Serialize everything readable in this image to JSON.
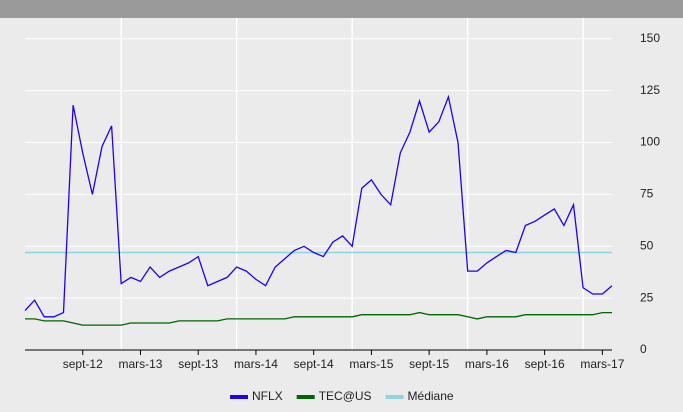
{
  "chart_data": {
    "type": "line",
    "x": [
      "2012-03",
      "2012-04",
      "2012-05",
      "2012-06",
      "2012-07",
      "2012-08",
      "2012-09",
      "2012-10",
      "2012-11",
      "2012-12",
      "2013-01",
      "2013-02",
      "2013-03",
      "2013-04",
      "2013-05",
      "2013-06",
      "2013-07",
      "2013-08",
      "2013-09",
      "2013-10",
      "2013-11",
      "2013-12",
      "2014-01",
      "2014-02",
      "2014-03",
      "2014-04",
      "2014-05",
      "2014-06",
      "2014-07",
      "2014-08",
      "2014-09",
      "2014-10",
      "2014-11",
      "2014-12",
      "2015-01",
      "2015-02",
      "2015-03",
      "2015-04",
      "2015-05",
      "2015-06",
      "2015-07",
      "2015-08",
      "2015-09",
      "2015-10",
      "2015-11",
      "2015-12",
      "2016-01",
      "2016-02",
      "2016-03",
      "2016-04",
      "2016-05",
      "2016-06",
      "2016-07",
      "2016-08",
      "2016-09",
      "2016-10",
      "2016-11",
      "2016-12",
      "2017-01",
      "2017-02",
      "2017-03",
      "2017-04"
    ],
    "series": [
      {
        "name": "NFLX",
        "color": "#2200ee",
        "values": [
          19,
          24,
          16,
          16,
          18,
          118,
          95,
          75,
          98,
          108,
          32,
          35,
          33,
          40,
          35,
          38,
          40,
          42,
          45,
          31,
          33,
          35,
          40,
          38,
          34,
          31,
          40,
          44,
          48,
          50,
          47,
          45,
          52,
          55,
          50,
          78,
          82,
          75,
          70,
          95,
          105,
          120,
          105,
          110,
          122,
          100,
          38,
          38,
          42,
          45,
          48,
          47,
          60,
          62,
          65,
          68,
          60,
          70,
          30,
          27,
          27,
          31
        ]
      },
      {
        "name": "TEC@US",
        "color": "#006400",
        "values": [
          15,
          15,
          14,
          14,
          14,
          13,
          12,
          12,
          12,
          12,
          12,
          13,
          13,
          13,
          13,
          13,
          14,
          14,
          14,
          14,
          14,
          15,
          15,
          15,
          15,
          15,
          15,
          15,
          16,
          16,
          16,
          16,
          16,
          16,
          16,
          17,
          17,
          17,
          17,
          17,
          17,
          18,
          17,
          17,
          17,
          17,
          16,
          15,
          16,
          16,
          16,
          16,
          17,
          17,
          17,
          17,
          17,
          17,
          17,
          17,
          18,
          18
        ]
      }
    ],
    "median": {
      "name": "Médiane",
      "color": "#8fd3e0",
      "value": 47
    },
    "xlim": [
      "2012-03",
      "2017-04"
    ],
    "xticks": [
      {
        "value": "2012-09",
        "label": "sept-12"
      },
      {
        "value": "2013-03",
        "label": "mars-13"
      },
      {
        "value": "2013-09",
        "label": "sept-13"
      },
      {
        "value": "2014-03",
        "label": "mars-14"
      },
      {
        "value": "2014-09",
        "label": "sept-14"
      },
      {
        "value": "2015-03",
        "label": "mars-15"
      },
      {
        "value": "2015-09",
        "label": "sept-15"
      },
      {
        "value": "2016-03",
        "label": "mars-16"
      },
      {
        "value": "2016-09",
        "label": "sept-16"
      },
      {
        "value": "2017-03",
        "label": "mars-17"
      }
    ],
    "xgrid": [
      "2013-01",
      "2014-01",
      "2015-01",
      "2016-01",
      "2017-01"
    ],
    "ylim": [
      0,
      160
    ],
    "yticks": [
      0,
      25,
      50,
      75,
      100,
      125,
      150
    ],
    "grid": true,
    "legend": "bottom"
  }
}
